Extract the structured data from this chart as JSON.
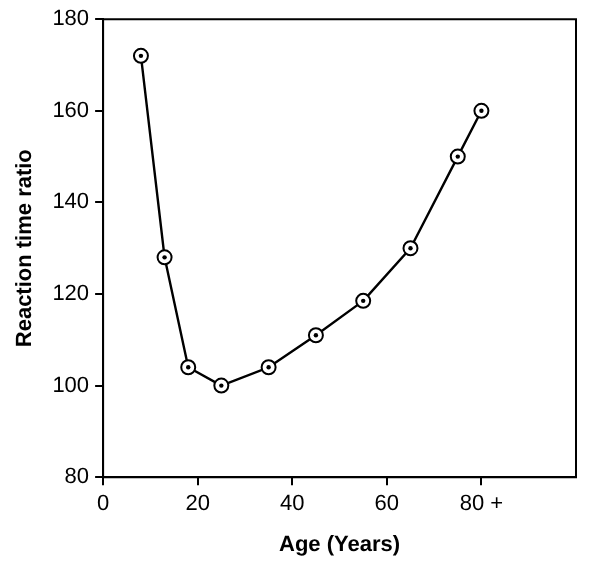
{
  "chart_data": {
    "type": "line",
    "xlabel": "Age (Years)",
    "ylabel": "Reaction time ratio",
    "x": [
      8,
      13,
      18,
      25,
      35,
      45,
      55,
      65,
      75,
      80
    ],
    "series": [
      {
        "color": "#000000",
        "values": [
          172,
          128,
          104,
          100,
          104,
          111,
          118.5,
          130,
          150,
          160
        ]
      }
    ],
    "xlim": [
      0,
      100
    ],
    "xticks": [
      0,
      20,
      40,
      60,
      {
        "value": 80,
        "label": "80 +"
      }
    ],
    "ylim": [
      80,
      180
    ],
    "yticks": [
      80,
      100,
      120,
      140,
      160,
      180
    ],
    "grid": false,
    "legend": false,
    "marker": "circle",
    "line_style": "solid"
  }
}
